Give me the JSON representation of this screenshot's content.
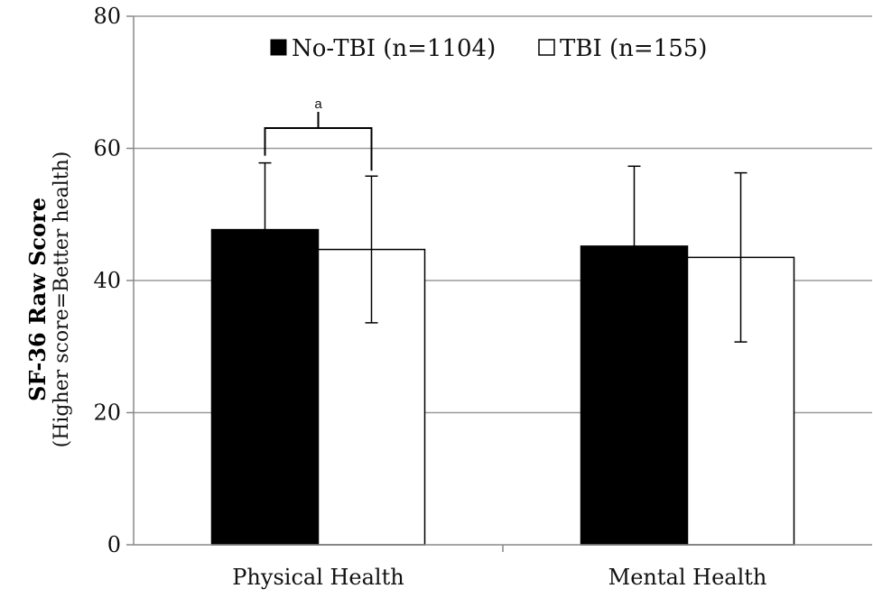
{
  "chart_data": {
    "type": "bar",
    "categories": [
      "Physical Health",
      "Mental Health"
    ],
    "series": [
      {
        "name": "No-TBI (n=1104)",
        "values": [
          47.7,
          45.2
        ],
        "error": [
          10.1,
          12.1
        ],
        "color": "#000000"
      },
      {
        "name": "TBI (n=155)",
        "values": [
          44.7,
          43.5
        ],
        "error": [
          11.1,
          12.8
        ],
        "color": "#ffffff"
      }
    ],
    "ylabel": "SF-36 Raw Score",
    "ylabel_sub": "(Higher score=Better health)",
    "ylim": [
      0,
      80
    ],
    "yticks": [
      "0",
      "20",
      "40",
      "60",
      "80"
    ],
    "grid": true,
    "legend": "top",
    "annotation": "a"
  }
}
